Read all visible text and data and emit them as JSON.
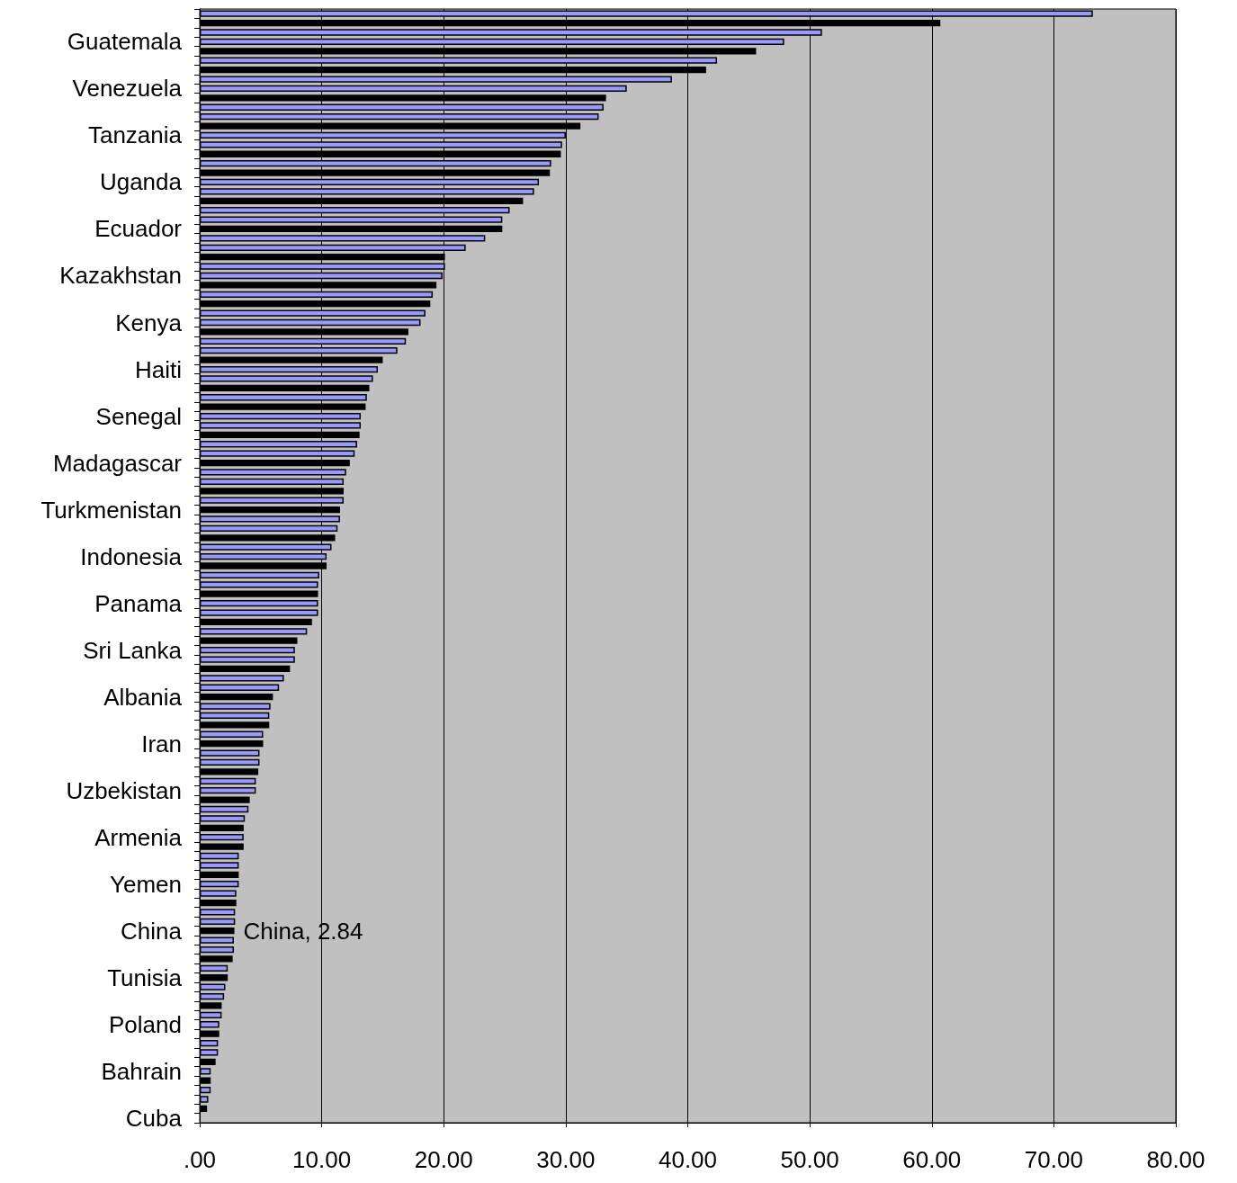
{
  "chart_data": {
    "type": "bar",
    "orientation": "horizontal",
    "categories": [
      null,
      null,
      null,
      "Guatemala",
      null,
      null,
      null,
      null,
      "Venezuela",
      null,
      null,
      null,
      null,
      "Tanzania",
      null,
      null,
      null,
      null,
      "Uganda",
      null,
      null,
      null,
      null,
      "Ecuador",
      null,
      null,
      null,
      null,
      "Kazakhstan",
      null,
      null,
      null,
      null,
      "Kenya",
      null,
      null,
      null,
      null,
      "Haiti",
      null,
      null,
      null,
      null,
      "Senegal",
      null,
      null,
      null,
      null,
      "Madagascar",
      null,
      null,
      null,
      null,
      "Turkmenistan",
      null,
      null,
      null,
      null,
      "Indonesia",
      null,
      null,
      null,
      null,
      "Panama",
      null,
      null,
      null,
      null,
      "Sri Lanka",
      null,
      null,
      null,
      null,
      "Albania",
      null,
      null,
      null,
      null,
      "Iran",
      null,
      null,
      null,
      null,
      "Uzbekistan",
      null,
      null,
      null,
      null,
      "Armenia",
      null,
      null,
      null,
      null,
      "Yemen",
      null,
      null,
      null,
      null,
      "China",
      null,
      null,
      null,
      null,
      "Tunisia",
      null,
      null,
      null,
      null,
      "Poland",
      null,
      null,
      null,
      null,
      "Bahrain",
      null,
      null,
      null,
      null,
      "Cuba"
    ],
    "values": [
      73.2,
      60.7,
      51.0,
      47.9,
      45.6,
      42.4,
      41.5,
      38.7,
      35.0,
      33.3,
      33.1,
      32.7,
      31.2,
      30.0,
      29.7,
      29.6,
      28.8,
      28.7,
      27.8,
      27.4,
      26.5,
      25.4,
      24.8,
      24.8,
      23.4,
      21.8,
      20.1,
      20.1,
      19.9,
      19.4,
      19.1,
      18.9,
      18.5,
      18.1,
      17.1,
      16.9,
      16.2,
      15.0,
      14.6,
      14.2,
      13.9,
      13.7,
      13.6,
      13.2,
      13.2,
      13.1,
      12.9,
      12.7,
      12.3,
      12.0,
      11.8,
      11.8,
      11.8,
      11.5,
      11.5,
      11.3,
      11.1,
      10.8,
      10.4,
      10.4,
      9.8,
      9.7,
      9.7,
      9.7,
      9.7,
      9.2,
      8.8,
      8.0,
      7.8,
      7.8,
      7.4,
      6.9,
      6.5,
      6.0,
      5.8,
      5.7,
      5.7,
      5.2,
      5.2,
      4.9,
      4.9,
      4.8,
      4.6,
      4.6,
      4.1,
      4.0,
      3.7,
      3.6,
      3.6,
      3.6,
      3.2,
      3.2,
      3.2,
      3.2,
      3.0,
      3.0,
      2.9,
      2.9,
      2.84,
      2.8,
      2.8,
      2.7,
      2.3,
      2.3,
      2.1,
      2.0,
      1.8,
      1.8,
      1.6,
      1.6,
      1.5,
      1.5,
      1.3,
      0.9,
      0.9,
      0.9,
      0.7,
      0.6,
      null
    ],
    "colors": [
      "#9999ff",
      "#000000",
      "#9999ff",
      "#9999ff",
      "#000000",
      "#9999ff",
      "#000000",
      "#9999ff",
      "#9999ff",
      "#000000",
      "#9999ff",
      "#9999ff",
      "#000000",
      "#9999ff",
      "#9999ff",
      "#000000",
      "#9999ff",
      "#000000",
      "#9999ff",
      "#9999ff",
      "#000000",
      "#9999ff",
      "#9999ff",
      "#000000",
      "#9999ff",
      "#9999ff",
      "#000000",
      "#9999ff",
      "#9999ff",
      "#000000",
      "#9999ff",
      "#000000",
      "#9999ff",
      "#9999ff",
      "#000000",
      "#9999ff",
      "#9999ff",
      "#000000",
      "#9999ff",
      "#9999ff",
      "#000000",
      "#9999ff",
      "#000000",
      "#9999ff",
      "#9999ff",
      "#000000",
      "#9999ff",
      "#9999ff",
      "#000000",
      "#9999ff",
      "#9999ff",
      "#000000",
      "#9999ff",
      "#000000",
      "#9999ff",
      "#9999ff",
      "#000000",
      "#9999ff",
      "#9999ff",
      "#000000",
      "#9999ff",
      "#9999ff",
      "#000000",
      "#9999ff",
      "#9999ff",
      "#000000",
      "#9999ff",
      "#000000",
      "#9999ff",
      "#9999ff",
      "#000000",
      "#9999ff",
      "#9999ff",
      "#000000",
      "#9999ff",
      "#9999ff",
      "#000000",
      "#9999ff",
      "#000000",
      "#9999ff",
      "#9999ff",
      "#000000",
      "#9999ff",
      "#9999ff",
      "#000000",
      "#9999ff",
      "#9999ff",
      "#000000",
      "#9999ff",
      "#000000",
      "#9999ff",
      "#9999ff",
      "#000000",
      "#9999ff",
      "#9999ff",
      "#000000",
      "#9999ff",
      "#9999ff",
      "#000000",
      "#9999ff",
      "#9999ff",
      "#000000",
      "#9999ff",
      "#000000",
      "#9999ff",
      "#9999ff",
      "#000000",
      "#9999ff",
      "#9999ff",
      "#000000",
      "#9999ff",
      "#9999ff",
      "#000000",
      "#9999ff",
      "#000000",
      "#9999ff",
      "#9999ff",
      "#000000",
      null
    ],
    "value_labels": [
      null,
      null,
      null,
      null,
      null,
      null,
      null,
      null,
      null,
      null,
      null,
      null,
      null,
      null,
      null,
      null,
      null,
      null,
      null,
      null,
      null,
      null,
      null,
      null,
      null,
      null,
      null,
      null,
      null,
      null,
      null,
      null,
      null,
      null,
      null,
      null,
      null,
      null,
      null,
      null,
      null,
      null,
      null,
      null,
      null,
      null,
      null,
      null,
      null,
      null,
      null,
      null,
      null,
      null,
      null,
      null,
      null,
      null,
      null,
      null,
      null,
      null,
      null,
      null,
      null,
      null,
      null,
      null,
      null,
      null,
      null,
      null,
      null,
      null,
      null,
      null,
      null,
      null,
      null,
      null,
      null,
      null,
      null,
      null,
      null,
      null,
      null,
      null,
      null,
      null,
      null,
      null,
      null,
      null,
      null,
      null,
      null,
      null,
      "China, 2.84",
      null,
      null,
      null,
      null,
      null,
      null,
      null,
      null,
      null,
      null,
      null,
      null,
      null,
      null,
      null,
      null,
      null,
      null,
      null,
      null
    ],
    "xlim": [
      0,
      80
    ],
    "xticks": [
      {
        "value": 0,
        "label": ".00"
      },
      {
        "value": 10,
        "label": "10.00"
      },
      {
        "value": 20,
        "label": "20.00"
      },
      {
        "value": 30,
        "label": "30.00"
      },
      {
        "value": 40,
        "label": "40.00"
      },
      {
        "value": 50,
        "label": "50.00"
      },
      {
        "value": 60,
        "label": "60.00"
      },
      {
        "value": 70,
        "label": "70.00"
      },
      {
        "value": 80,
        "label": "80.00"
      }
    ],
    "grid": "x"
  }
}
